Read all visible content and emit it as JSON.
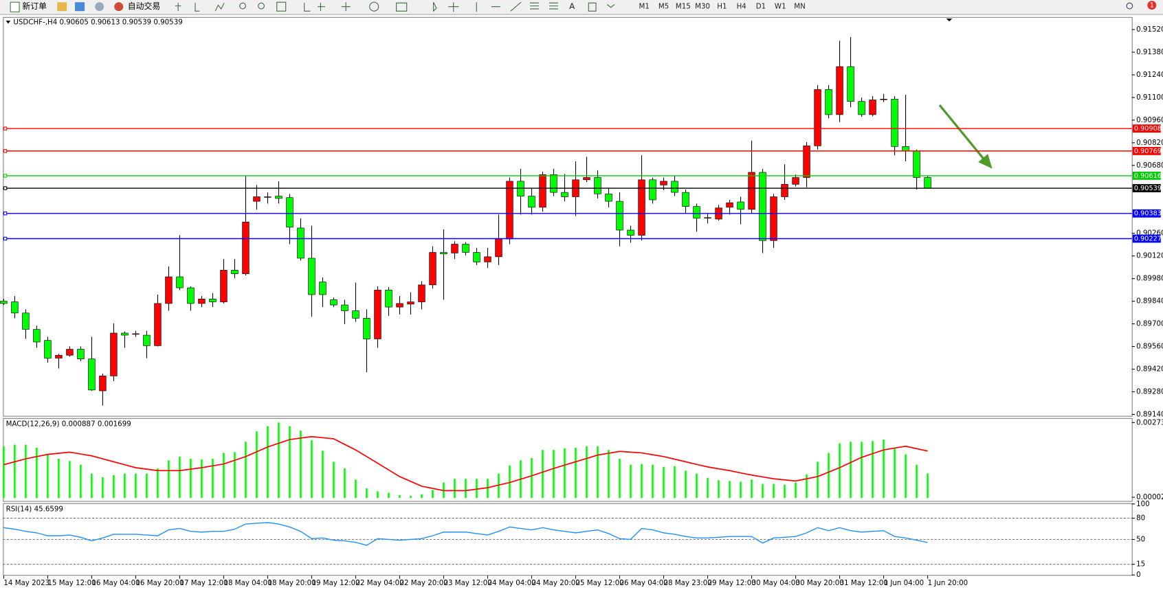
{
  "toolbar": {
    "new_order": "新订单",
    "auto_trading": "自动交易",
    "timeframes": [
      "M1",
      "M5",
      "M15",
      "M30",
      "H1",
      "H4",
      "D1",
      "W1",
      "MN"
    ],
    "badge": "1"
  },
  "chart_data": [
    {
      "type": "candlestick",
      "title": "USDCHF-,H4  0.90605 0.90613 0.90539 0.90539",
      "categories": [
        "14 May 2023",
        null,
        null,
        null,
        "15 May 12:00",
        null,
        null,
        null,
        "16 May 04:00",
        null,
        null,
        null,
        "16 May 20:00",
        null,
        null,
        null,
        "17 May 12:00",
        null,
        null,
        null,
        "18 May 04:00",
        null,
        null,
        null,
        "18 May 20:00",
        null,
        null,
        null,
        "19 May 12:00",
        null,
        null,
        null,
        "22 May 04:00",
        null,
        null,
        null,
        "22 May 20:00",
        null,
        null,
        null,
        "23 May 12:00",
        null,
        null,
        null,
        "24 May 04:00",
        null,
        null,
        null,
        "24 May 20:00",
        null,
        null,
        null,
        "25 May 12:00",
        null,
        null,
        null,
        "26 May 04:00",
        null,
        null,
        null,
        "28 May 23:00",
        null,
        null,
        null,
        "29 May 12:00",
        null,
        null,
        null,
        "30 May 04:00",
        null,
        null,
        null,
        "30 May 20:00",
        null,
        null,
        null,
        "31 May 12:00",
        null,
        null,
        null,
        "1 Jun 04:00",
        null,
        null,
        null,
        "1 Jun 20:00"
      ],
      "open": [
        0.8984,
        0.89836,
        0.89767,
        0.89666,
        0.89598,
        0.89488,
        0.89506,
        0.89543,
        0.89483,
        0.89286,
        0.89378,
        0.89643,
        0.89639,
        0.8963,
        0.89565,
        0.89826,
        0.89991,
        0.89923,
        0.89826,
        0.89854,
        0.89836,
        0.90032,
        0.9001,
        0.90458,
        0.90486,
        0.9049,
        0.90481,
        0.90293,
        0.90106,
        0.89959,
        0.89849,
        0.89817,
        0.89781,
        0.89735,
        0.89607,
        0.89909,
        0.89804,
        0.89822,
        0.89836,
        0.89941,
        0.90142,
        0.90138,
        0.90193,
        0.90142,
        0.90083,
        0.90115,
        0.90225,
        0.90582,
        0.9049,
        0.90421,
        0.90623,
        0.90513,
        0.90486,
        0.90591,
        0.90605,
        0.90504,
        0.90458,
        0.9028,
        0.90248,
        0.90591,
        0.90559,
        0.90582,
        0.90513,
        0.90426,
        0.90357,
        0.90348,
        0.90421,
        0.90454,
        0.90408,
        0.90637,
        0.90215,
        0.90486,
        0.90563,
        0.90605,
        0.90801,
        0.91149,
        0.90994,
        0.91291,
        0.91076,
        0.90994,
        0.9109,
        0.9109,
        0.90797,
        0.90769,
        0.90605
      ],
      "high": [
        0.89854,
        0.89872,
        0.8979,
        0.89689,
        0.8962,
        0.89515,
        0.89561,
        0.89561,
        0.8962,
        0.89392,
        0.89703,
        0.89653,
        0.89657,
        0.89657,
        0.89881,
        0.90055,
        0.90248,
        0.89932,
        0.89872,
        0.89891,
        0.90101,
        0.90101,
        0.90614,
        0.90559,
        0.90513,
        0.90582,
        0.90504,
        0.90353,
        0.90307,
        0.89987,
        0.89863,
        0.89849,
        0.89955,
        0.8979,
        0.89932,
        0.89927,
        0.89872,
        0.89895,
        0.89964,
        0.90179,
        0.90284,
        0.90211,
        0.90206,
        0.9017,
        0.9017,
        0.90376,
        0.90605,
        0.90659,
        0.90536,
        0.90641,
        0.90659,
        0.90627,
        0.90705,
        0.90733,
        0.9065,
        0.90536,
        0.90513,
        0.90307,
        0.90742,
        0.90605,
        0.90605,
        0.90614,
        0.90531,
        0.90444,
        0.90385,
        0.90435,
        0.90467,
        0.90486,
        0.90833,
        0.90659,
        0.90504,
        0.90687,
        0.90623,
        0.90824,
        0.91177,
        0.91177,
        0.91451,
        0.91474,
        0.91099,
        0.91108,
        0.91122,
        0.91108,
        0.91117,
        0.90778,
        0.90613
      ],
      "low": [
        0.89817,
        0.89735,
        0.89607,
        0.89552,
        0.8946,
        0.89424,
        0.89497,
        0.89469,
        0.89286,
        0.89195,
        0.89346,
        0.89552,
        0.8962,
        0.89488,
        0.89561,
        0.89781,
        0.89909,
        0.89781,
        0.89804,
        0.89804,
        0.89826,
        0.89982,
        0.9,
        0.90408,
        0.90444,
        0.90444,
        0.90193,
        0.90092,
        0.89744,
        0.89804,
        0.89804,
        0.89698,
        0.89712,
        0.89401,
        0.89552,
        0.89749,
        0.89758,
        0.89758,
        0.8979,
        0.89918,
        0.89849,
        0.90101,
        0.90124,
        0.90064,
        0.90046,
        0.90064,
        0.90193,
        0.90376,
        0.90376,
        0.90394,
        0.9049,
        0.90458,
        0.90367,
        0.90577,
        0.90476,
        0.90421,
        0.90179,
        0.90202,
        0.90215,
        0.90444,
        0.90527,
        0.9049,
        0.90385,
        0.9027,
        0.90321,
        0.90339,
        0.90376,
        0.90316,
        0.90385,
        0.90138,
        0.9017,
        0.90467,
        0.9055,
        0.90545,
        0.90778,
        0.90971,
        0.90948,
        0.91039,
        0.9098,
        0.90984,
        0.91071,
        0.90742,
        0.90705,
        0.90531,
        0.90539
      ],
      "close": [
        0.89826,
        0.89767,
        0.89666,
        0.89588,
        0.89488,
        0.89506,
        0.89543,
        0.89483,
        0.89291,
        0.89378,
        0.89643,
        0.8963,
        0.89639,
        0.89565,
        0.89826,
        0.89991,
        0.89923,
        0.89826,
        0.89854,
        0.89836,
        0.90032,
        0.9001,
        0.9033,
        0.90486,
        0.90486,
        0.90476,
        0.90298,
        0.90106,
        0.89881,
        0.89881,
        0.89817,
        0.89781,
        0.89735,
        0.89607,
        0.89909,
        0.89804,
        0.89826,
        0.89836,
        0.89941,
        0.90142,
        0.90133,
        0.90193,
        0.90142,
        0.90083,
        0.90115,
        0.90225,
        0.90582,
        0.9049,
        0.90421,
        0.90623,
        0.90513,
        0.90486,
        0.90591,
        0.90605,
        0.90504,
        0.90458,
        0.9028,
        0.90248,
        0.90591,
        0.90467,
        0.90582,
        0.90513,
        0.90426,
        0.90353,
        0.90357,
        0.90417,
        0.90449,
        0.90408,
        0.90637,
        0.90215,
        0.90486,
        0.90563,
        0.90605,
        0.90801,
        0.91149,
        0.90994,
        0.91291,
        0.91076,
        0.90994,
        0.91085,
        0.9109,
        0.90797,
        0.90769,
        0.90605,
        0.90539
      ],
      "up_color": "#ff0000",
      "down_color": "#00ff00",
      "ylim": [
        0.89131,
        0.91593
      ],
      "yticks": [
        {
          "value": 0.9152,
          "label": "0.91520"
        },
        {
          "value": 0.9138,
          "label": "0.91380"
        },
        {
          "value": 0.9124,
          "label": "0.91240"
        },
        {
          "value": 0.911,
          "label": "0.91100"
        },
        {
          "value": 0.9096,
          "label": "0.90960"
        },
        {
          "value": 0.9082,
          "label": "0.90820"
        },
        {
          "value": 0.9068,
          "label": "0.90680"
        },
        {
          "value": 0.9026,
          "label": "0.90260"
        },
        {
          "value": 0.9012,
          "label": "0.90120"
        },
        {
          "value": 0.8998,
          "label": "0.89980"
        },
        {
          "value": 0.8984,
          "label": "0.89840"
        },
        {
          "value": 0.897,
          "label": "0.89700"
        },
        {
          "value": 0.8956,
          "label": "0.89560"
        },
        {
          "value": 0.8942,
          "label": "0.89420"
        },
        {
          "value": 0.8928,
          "label": "0.89280"
        },
        {
          "value": 0.8914,
          "label": "0.89140"
        }
      ],
      "hlines": [
        {
          "value": 0.90908,
          "color": "#ff0000"
        },
        {
          "value": 0.90769,
          "color": "#ff0000"
        },
        {
          "value": 0.90616,
          "color": "#00cc00"
        },
        {
          "value": 0.90539,
          "color": "#000000"
        },
        {
          "value": 0.90383,
          "color": "#0000ff"
        },
        {
          "value": 0.90227,
          "color": "#0000ff"
        }
      ]
    },
    {
      "type": "macd",
      "title": "MACD(12,26,9) 0.000887 0.001699",
      "series": [
        {
          "color": "#00ff00",
          "values": [
            0.001873,
            0.001927,
            0.001927,
            0.00182,
            0.001578,
            0.001418,
            0.001337,
            0.001203,
            0.000882,
            0.000748,
            0.000828,
            0.000882,
            0.000882,
            0.000882,
            0.001069,
            0.001364,
            0.001498,
            0.001418,
            0.001391,
            0.001418,
            0.001632,
            0.001659,
            0.002034,
            0.002409,
            0.002597,
            0.00273,
            0.002597,
            0.002436,
            0.002088,
            0.001712,
            0.00131,
            0.001069,
            0.000667,
            0.000346,
            0.000238,
            0.000185,
            0.000104,
            7.8e-05,
            0.000131,
            0.000292,
            0.00056,
            0.000694,
            0.000694,
            0.000694,
            0.000694,
            0.000882,
            0.001176,
            0.001364,
            0.001444,
            0.001739,
            0.001739,
            0.001793,
            0.00182,
            0.001873,
            0.001873,
            0.001739,
            0.001418,
            0.001203,
            0.00123,
            0.001203,
            0.001123,
            0.00115,
            0.000989,
            0.000882,
            0.000721,
            0.00064,
            0.000614,
            0.000587,
            0.000667,
            0.000506,
            0.000506,
            0.00048,
            0.00056,
            0.000855,
            0.00131,
            0.001632,
            0.00198,
            0.002034,
            0.002034,
            0.002061,
            0.002114,
            0.00182,
            0.001578,
            0.001203,
            0.000887
          ]
        },
        {
          "color": "#ff0000",
          "values": [
            0.001203,
            0.00131,
            0.001418,
            0.001498,
            0.001578,
            0.001618,
            0.001659,
            0.001592,
            0.001525,
            0.001418,
            0.00131,
            0.001203,
            0.001096,
            0.001042,
            0.000989,
            0.000989,
            0.000989,
            0.001042,
            0.001096,
            0.001163,
            0.00123,
            0.001364,
            0.001498,
            0.001672,
            0.001846,
            0.00198,
            0.002114,
            0.002168,
            0.002222,
            0.002182,
            0.002141,
            0.00194,
            0.001739,
            0.001498,
            0.001257,
            0.001016,
            0.000774,
            0.0006,
            0.000426,
            0.000346,
            0.000265,
            0.000265,
            0.000265,
            0.000318,
            0.000372,
            0.000466,
            0.00056,
            0.00068,
            0.000801,
            0.000935,
            0.001069,
            0.00119,
            0.00131,
            0.001431,
            0.001552,
            0.001619,
            0.001686,
            0.001659,
            0.001632,
            0.001565,
            0.001498,
            0.001404,
            0.00131,
            0.001216,
            0.001123,
            0.001056,
            0.000989,
            0.000908,
            0.000828,
            0.000761,
            0.000694,
            0.000654,
            0.000614,
            0.000694,
            0.000774,
            0.000935,
            0.001096,
            0.001284,
            0.001471,
            0.001605,
            0.001739,
            0.001806,
            0.001873,
            0.001786,
            0.001699
          ]
        }
      ],
      "ylim": [
        -0.00011,
        0.002865
      ],
      "yticks": [
        0.00273,
        2.4e-05
      ]
    },
    {
      "type": "line",
      "title": "RSI(14) 45.6599",
      "color": "#1e90ff",
      "values": [
        66.6,
        64.5,
        61.4,
        59.3,
        55.2,
        55.2,
        56.2,
        53.1,
        48.0,
        52.1,
        57.3,
        57.3,
        57.3,
        56.2,
        55.2,
        63.5,
        65.5,
        61.4,
        60.4,
        61.4,
        61.4,
        64.5,
        71.7,
        72.8,
        73.8,
        71.7,
        67.6,
        61.4,
        51.1,
        52.1,
        49.0,
        48.0,
        45.9,
        41.8,
        51.1,
        50.1,
        49.0,
        50.1,
        51.1,
        55.2,
        60.4,
        60.4,
        60.4,
        58.3,
        56.2,
        61.4,
        67.6,
        65.5,
        63.5,
        66.6,
        63.5,
        61.4,
        59.3,
        61.4,
        63.5,
        58.3,
        51.1,
        50.1,
        65.5,
        63.5,
        59.3,
        57.3,
        54.2,
        52.1,
        52.1,
        53.1,
        54.2,
        54.2,
        54.2,
        44.9,
        52.1,
        53.1,
        54.2,
        59.3,
        66.6,
        62.4,
        66.6,
        62.4,
        60.4,
        61.4,
        62.4,
        54.2,
        52.1,
        49.0,
        45.6599
      ],
      "ylim": [
        0,
        100
      ],
      "yticks": [
        100,
        80,
        50,
        15,
        0
      ],
      "grid": true
    }
  ]
}
